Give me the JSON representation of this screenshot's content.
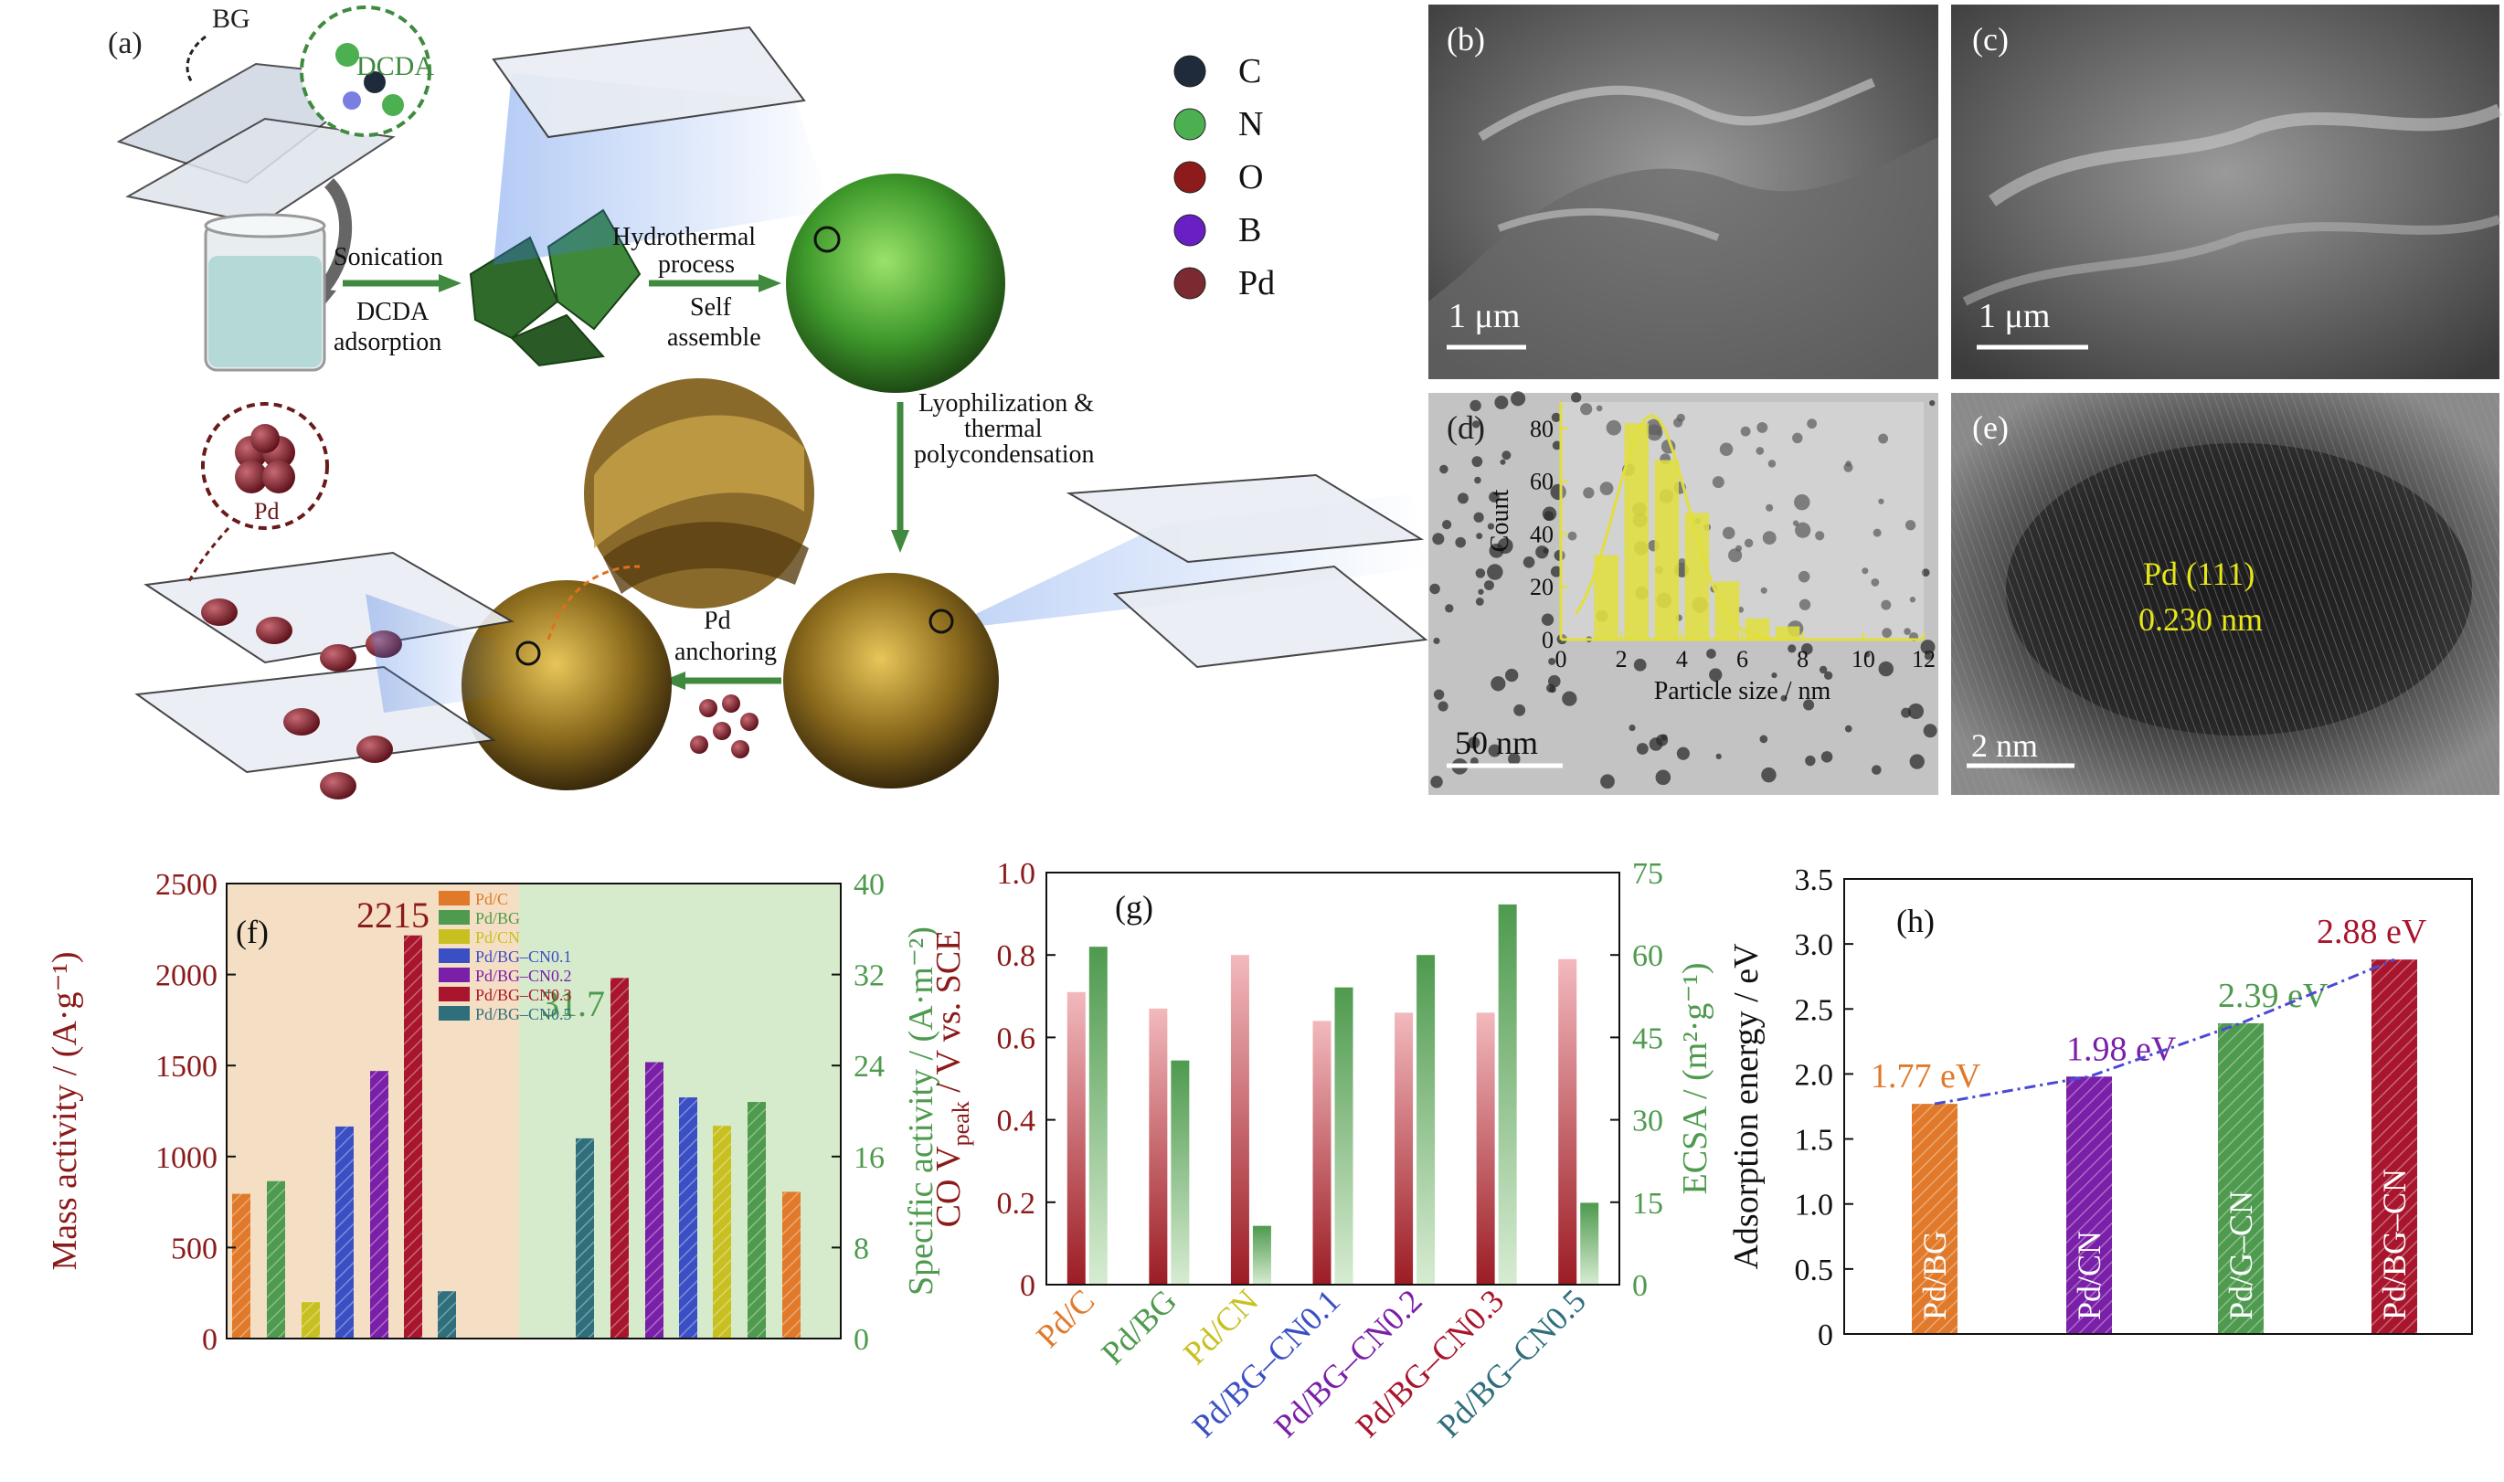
{
  "panel_a": {
    "label": "(a)",
    "bg_label": "BG",
    "dcda_label": "DCDA",
    "step1_top": "Sonication",
    "step1_bottom": [
      "DCDA",
      "adsorption"
    ],
    "step2_top": [
      "Hydrothermal",
      "process"
    ],
    "step2_bottom": [
      "Self",
      "assemble"
    ],
    "step3": [
      "Lyophilization &",
      "thermal",
      "polycondensation"
    ],
    "step4": [
      "Pd",
      "anchoring"
    ],
    "pd_label": "Pd",
    "legend": [
      {
        "label": "C",
        "color": "#1f2b3a"
      },
      {
        "label": "N",
        "color": "#4caf50"
      },
      {
        "label": "O",
        "color": "#8e1b1b"
      },
      {
        "label": "B",
        "color": "#6a1fc4"
      },
      {
        "label": "Pd",
        "color": "#7a2a30"
      }
    ]
  },
  "panel_b": {
    "label": "(b)",
    "scale": "1 μm"
  },
  "panel_c": {
    "label": "(c)",
    "scale": "1 μm"
  },
  "panel_d": {
    "label": "(d)",
    "scale": "50 nm"
  },
  "panel_e": {
    "label": "(e)",
    "plane": "Pd (111)",
    "spacing": "0.230 nm",
    "scale": "2 nm"
  },
  "colors": {
    "pd_c": "#e07a2a",
    "pd_bg": "#4e9a4e",
    "pd_cn": "#c8c020",
    "pd_bg_cn01": "#3b4fc4",
    "pd_bg_cn02": "#7a1fa8",
    "pd_bg_cn03": "#a8152c",
    "pd_bg_cn05": "#2f6f7c",
    "axis_red": "#8b1a1a",
    "axis_green": "#4e9a4e"
  },
  "chart_data": [
    {
      "panel": "(d) inset",
      "type": "bar",
      "xlabel": "Particle size / nm",
      "ylabel": "Count",
      "xlim": [
        0,
        12
      ],
      "ylim": [
        0,
        90
      ],
      "xticks": [
        0,
        2,
        4,
        6,
        8,
        10,
        12
      ],
      "yticks": [
        0,
        20,
        40,
        60,
        80
      ],
      "x": [
        1.5,
        2.5,
        3.5,
        4.5,
        5.5,
        6.5,
        7.5
      ],
      "values": [
        32,
        82,
        68,
        48,
        22,
        8,
        5
      ]
    },
    {
      "panel": "(f)",
      "type": "bar",
      "label": "(f)",
      "ylabel_left": "Mass activity / (A·g⁻¹)",
      "ylabel_right": "Specific activity / (A·m⁻²)",
      "ylim_left": [
        0,
        2500
      ],
      "ylim_right": [
        0,
        40
      ],
      "yticks_left": [
        0,
        500,
        1000,
        1500,
        2000,
        2500
      ],
      "yticks_right": [
        0,
        8,
        16,
        24,
        32,
        40
      ],
      "legend": [
        "Pd/C",
        "Pd/BG",
        "Pd/CN",
        "Pd/BG–CN0.1",
        "Pd/BG–CN0.2",
        "Pd/BG–CN0.3",
        "Pd/BG–CN0.5"
      ],
      "mass_activity": [
        795,
        865,
        200,
        1165,
        1470,
        2215,
        260
      ],
      "specific_activity": [
        17.6,
        31.7,
        24.3,
        21.2,
        18.7,
        20.8,
        12.9
      ],
      "specific_activity_order": [
        "Pd/CN",
        "Pd/BG–CN0.3",
        "Pd/BG–CN0.2",
        "Pd/BG–CN0.1",
        "Pd/BG–CN0.3 (yellow)",
        "Pd/BG",
        "Pd/C"
      ],
      "annotation_mass": "2215",
      "annotation_specific": "31.7"
    },
    {
      "panel": "(g)",
      "type": "bar",
      "label": "(g)",
      "categories": [
        "Pd/C",
        "Pd/BG",
        "Pd/CN",
        "Pd/BG–CN0.1",
        "Pd/BG–CN0.2",
        "Pd/BG–CN0.3",
        "Pd/BG–CN0.5"
      ],
      "ylabel_left": "CO V",
      "ylabel_left_sub": "peak",
      "ylabel_left_tail": " / V vs. SCE",
      "ylabel_right": "ECSA / (m²·g⁻¹)",
      "ylim_left": [
        0,
        1.0
      ],
      "ylim_right": [
        0,
        75
      ],
      "yticks_left": [
        "0",
        "0.2",
        "0.4",
        "0.6",
        "0.8",
        "1.0"
      ],
      "yticks_right": [
        0,
        15,
        30,
        45,
        60,
        75
      ],
      "co_peak": [
        0.71,
        0.67,
        0.8,
        0.64,
        0.66,
        0.66,
        0.79
      ],
      "ecsa": [
        61.5,
        40.8,
        10.7,
        54.1,
        60.0,
        69.2,
        14.9
      ]
    },
    {
      "panel": "(h)",
      "type": "bar",
      "label": "(h)",
      "categories": [
        "Pd/BG",
        "Pd/CN",
        "Pd/G–CN",
        "Pd/BG–CN"
      ],
      "ylabel": "Adsorption energy / eV",
      "ylim": [
        0,
        3.5
      ],
      "yticks": [
        "0",
        "0.5",
        "1.0",
        "1.5",
        "2.0",
        "2.5",
        "3.0",
        "3.5"
      ],
      "values": [
        1.77,
        1.98,
        2.39,
        2.88
      ],
      "value_labels": [
        "1.77 eV",
        "1.98 eV",
        "2.39 eV",
        "2.88 eV"
      ]
    }
  ]
}
